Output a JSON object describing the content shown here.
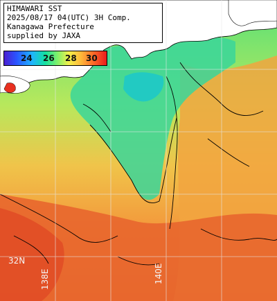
{
  "info_panel": {
    "line1": "HIMAWARI SST",
    "line2": "2025/08/17 04(UTC) 3H Comp.",
    "line3": "Kanagawa Prefecture",
    "line4": "supplied by JAXA"
  },
  "color_scale": {
    "ticks": [
      "24",
      "26",
      "28",
      "30"
    ],
    "colors": [
      "#4a1fd0",
      "#1fb3ff",
      "#7ff06a",
      "#f2f04a",
      "#ff6a28",
      "#e81c1c"
    ]
  },
  "grid_labels": {
    "lat_32": "32N",
    "lon_138": "138E",
    "lon_140": "140E"
  },
  "colors": {
    "land": "#ffffff",
    "cool_sea": "#36d28a",
    "warm_sea": "#f2a840",
    "hot_sea": "#e8662e",
    "grid": "#dcdcdc"
  }
}
